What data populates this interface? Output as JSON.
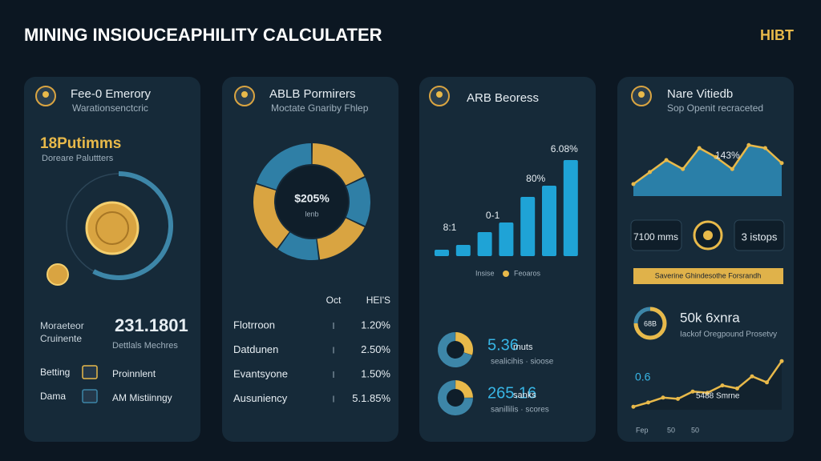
{
  "header": {
    "title": "MINING INSIOUCEAPHILITY CALCULATER",
    "brand": "HIBT"
  },
  "cards": [
    {
      "title": "Fee-0 Emerory",
      "subtitle": "Warationsenctcric",
      "headline": "18Putimms",
      "caption": "Doreare Paluttters",
      "gauge": {
        "value": 58,
        "max": 100,
        "color": "#3d86a8"
      },
      "stat": {
        "label": [
          "Moraeteor",
          "Cruinente"
        ],
        "value": "231.1801",
        "note": "Dettlals Mechres"
      },
      "items": [
        {
          "label": "Betting",
          "text": "Proinnlent"
        },
        {
          "label": "Dama",
          "text": "AM Mistiinngy"
        }
      ]
    },
    {
      "title": "ABLB Pormirers",
      "subtitle": "Moctate Gnariby Fhlep",
      "donut": {
        "label": "$205%",
        "sublabel": "lenb",
        "values": [
          18,
          14,
          16,
          12,
          20,
          20
        ],
        "colors": [
          "#d9a441",
          "#2f7fa6"
        ]
      },
      "table": {
        "columns": [
          "Oct",
          "HEI'S"
        ],
        "rows": [
          [
            "Flotrroon",
            "1.20%"
          ],
          [
            "Datdunen",
            "2.50%"
          ],
          [
            "Evantsyone",
            "1.50%"
          ],
          [
            "Ausuniency",
            "5.1.85%"
          ]
        ]
      }
    },
    {
      "title": "ARB Beoress",
      "bars": {
        "values": [
          8,
          14,
          30,
          42,
          74,
          88,
          120
        ],
        "ylim": [
          0,
          130
        ],
        "color": "#1fa3d6",
        "annotations": [
          "8:1",
          "0-1",
          "80%",
          "6.08%"
        ]
      },
      "legend": [
        "Insise",
        "Feoaros"
      ],
      "stats": [
        {
          "value": "5.36",
          "unit": "rnuts",
          "note": "sealicihis · sioose",
          "ring": [
            30,
            70
          ]
        },
        {
          "value": "265.16",
          "unit": "sanks",
          "note": "sanillilis · scores",
          "ring": [
            25,
            75
          ]
        }
      ]
    },
    {
      "title": "Nare Vitiedb",
      "subtitle": "Sop Openit recraceted",
      "area": {
        "values": [
          20,
          40,
          60,
          45,
          80,
          65,
          45,
          85,
          80,
          55
        ],
        "ylim": [
          0,
          100
        ],
        "label": "143%"
      },
      "boxes": [
        "7100 mms",
        "3 istops"
      ],
      "banner": "Saverine Ghindesothe Forsrandh",
      "ring": {
        "label": "68B",
        "value": 75,
        "max": 100
      },
      "stat": {
        "value": "50k 6xnra",
        "note": "Iackof Oregpound Prosetvy"
      },
      "line": {
        "values": [
          5,
          12,
          20,
          18,
          30,
          28,
          40,
          35,
          55,
          45,
          80
        ],
        "ylim": [
          0,
          100
        ],
        "labels": [
          "0.6",
          "5488 Smrne"
        ],
        "x_labels": [
          "Fep",
          "50",
          "50"
        ]
      }
    }
  ]
}
